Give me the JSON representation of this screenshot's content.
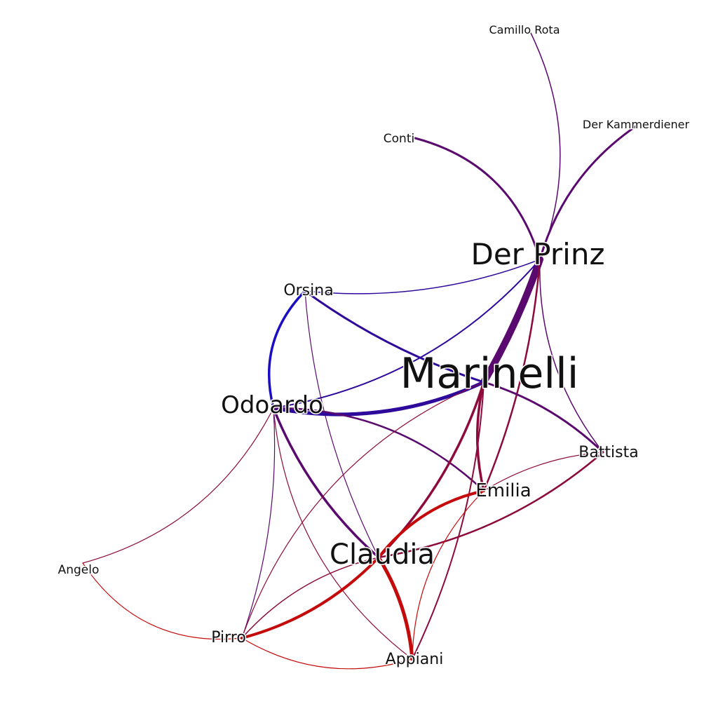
{
  "nodes": [
    {
      "id": "marinelli",
      "label": "Marinelli"
    },
    {
      "id": "prinz",
      "label": "Der Prinz"
    },
    {
      "id": "claudia",
      "label": "Claudia"
    },
    {
      "id": "odoardo",
      "label": "Odoardo"
    },
    {
      "id": "orsina",
      "label": "Orsina"
    },
    {
      "id": "emilia",
      "label": "Emilia"
    },
    {
      "id": "battista",
      "label": "Battista"
    },
    {
      "id": "appiani",
      "label": "Appiani"
    },
    {
      "id": "pirro",
      "label": "Pirro"
    },
    {
      "id": "angelo",
      "label": "Angelo"
    },
    {
      "id": "conti",
      "label": "Conti"
    },
    {
      "id": "camillo",
      "label": "Camillo Rota"
    },
    {
      "id": "kammerdiener",
      "label": "Der Kammerdiener"
    }
  ],
  "colors": {
    "purple": "#5a0a6e",
    "indigo": "#2e0a9c",
    "blue": "#1a0dc4",
    "crimson": "#8c0a3c",
    "red": "#c40a0a"
  },
  "edges": [
    {
      "source": "prinz",
      "target": "marinelli",
      "weight": 10,
      "color": "purple"
    },
    {
      "source": "prinz",
      "target": "conti",
      "weight": 3,
      "color": "purple"
    },
    {
      "source": "prinz",
      "target": "camillo",
      "weight": 1.5,
      "color": "purple"
    },
    {
      "source": "prinz",
      "target": "kammerdiener",
      "weight": 3,
      "color": "purple"
    },
    {
      "source": "prinz",
      "target": "orsina",
      "weight": 1.5,
      "color": "indigo"
    },
    {
      "source": "prinz",
      "target": "odoardo",
      "weight": 2,
      "color": "indigo"
    },
    {
      "source": "prinz",
      "target": "emilia",
      "weight": 2.5,
      "color": "crimson"
    },
    {
      "source": "prinz",
      "target": "battista",
      "weight": 1.5,
      "color": "purple"
    },
    {
      "source": "orsina",
      "target": "marinelli",
      "weight": 3,
      "color": "indigo"
    },
    {
      "source": "orsina",
      "target": "odoardo",
      "weight": 3.5,
      "color": "blue"
    },
    {
      "source": "orsina",
      "target": "claudia",
      "weight": 1.2,
      "color": "purple"
    },
    {
      "source": "marinelli",
      "target": "odoardo",
      "weight": 5,
      "color": "indigo"
    },
    {
      "source": "odoardo",
      "target": "marinelli",
      "weight": 2.5,
      "color": "indigo"
    },
    {
      "source": "odoardo",
      "target": "claudia",
      "weight": 3.5,
      "color": "purple"
    },
    {
      "source": "odoardo",
      "target": "emilia",
      "weight": 2.5,
      "color": "purple"
    },
    {
      "source": "odoardo",
      "target": "angelo",
      "weight": 1.2,
      "color": "crimson"
    },
    {
      "source": "odoardo",
      "target": "pirro",
      "weight": 1.2,
      "color": "purple"
    },
    {
      "source": "odoardo",
      "target": "appiani",
      "weight": 1.2,
      "color": "crimson"
    },
    {
      "source": "marinelli",
      "target": "claudia",
      "weight": 3.5,
      "color": "crimson"
    },
    {
      "source": "marinelli",
      "target": "emilia",
      "weight": 3.5,
      "color": "crimson"
    },
    {
      "source": "marinelli",
      "target": "battista",
      "weight": 3,
      "color": "purple"
    },
    {
      "source": "marinelli",
      "target": "appiani",
      "weight": 2,
      "color": "crimson"
    },
    {
      "source": "marinelli",
      "target": "pirro",
      "weight": 1.2,
      "color": "crimson"
    },
    {
      "source": "claudia",
      "target": "emilia",
      "weight": 4,
      "color": "red"
    },
    {
      "source": "claudia",
      "target": "appiani",
      "weight": 5,
      "color": "red"
    },
    {
      "source": "claudia",
      "target": "pirro",
      "weight": 4,
      "color": "red"
    },
    {
      "source": "claudia",
      "target": "battista",
      "weight": 2.5,
      "color": "crimson"
    },
    {
      "source": "emilia",
      "target": "appiani",
      "weight": 1.2,
      "color": "red"
    },
    {
      "source": "emilia",
      "target": "battista",
      "weight": 1.2,
      "color": "crimson"
    },
    {
      "source": "angelo",
      "target": "pirro",
      "weight": 1.2,
      "color": "red"
    },
    {
      "source": "pirro",
      "target": "appiani",
      "weight": 1.2,
      "color": "red"
    },
    {
      "source": "claudia",
      "target": "pirro",
      "weight": 1.5,
      "color": "crimson"
    }
  ]
}
